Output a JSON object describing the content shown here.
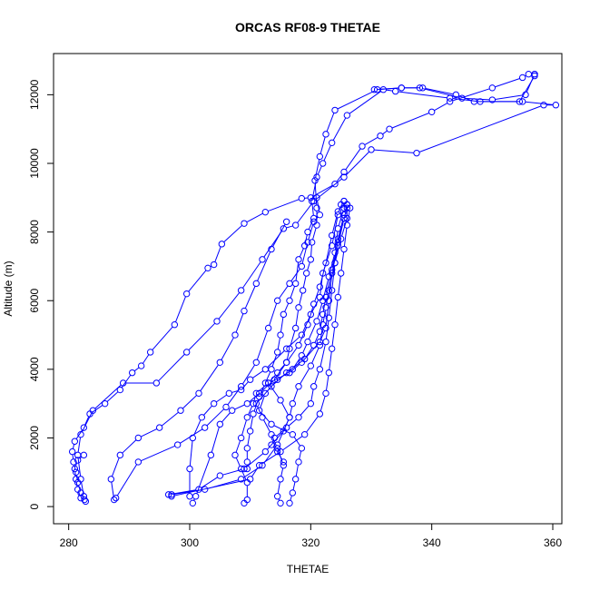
{
  "chart_data": {
    "type": "line",
    "title": "ORCAS RF08-9 THETAE",
    "xlabel": "THETAE",
    "ylabel": "Altitude (m)",
    "xlim": [
      277.5,
      361.5
    ],
    "ylim": [
      -500,
      13200
    ],
    "xticks": [
      280,
      300,
      320,
      340,
      360
    ],
    "yticks": [
      0,
      2000,
      4000,
      6000,
      8000,
      10000,
      12000
    ],
    "color": "#0000ff",
    "marker": "open-circle",
    "series": [
      {
        "values": [
          [
            282.6,
            200
          ],
          [
            282,
            400
          ],
          [
            281.5,
            700
          ],
          [
            281.2,
            1000
          ],
          [
            280.8,
            1300
          ],
          [
            280.6,
            1600
          ],
          [
            281,
            1900
          ],
          [
            282.5,
            2300
          ],
          [
            283.5,
            2700
          ],
          [
            286,
            3000
          ],
          [
            288.5,
            3400
          ],
          [
            290.5,
            3900
          ],
          [
            292,
            4100
          ],
          [
            293.5,
            4500
          ],
          [
            297.5,
            5300
          ],
          [
            299.5,
            6200
          ],
          [
            303,
            6950
          ],
          [
            304,
            7050
          ],
          [
            305.3,
            7650
          ],
          [
            309,
            8250
          ],
          [
            312.5,
            8580
          ],
          [
            318.5,
            8980
          ],
          [
            320,
            9000
          ],
          [
            324,
            9400
          ],
          [
            325.5,
            9750
          ],
          [
            328.5,
            10500
          ],
          [
            331.5,
            10800
          ],
          [
            333,
            11000
          ],
          [
            340,
            11500
          ],
          [
            343,
            11800
          ],
          [
            350,
            12200
          ],
          [
            355,
            12500
          ],
          [
            356,
            12600
          ],
          [
            357,
            12600
          ]
        ]
      },
      {
        "values": [
          [
            357,
            12600
          ],
          [
            355.5,
            12000
          ],
          [
            350,
            11850
          ],
          [
            345,
            11900
          ],
          [
            338,
            12200
          ],
          [
            335,
            12200
          ],
          [
            331,
            12150
          ],
          [
            324,
            11550
          ],
          [
            322.5,
            10850
          ],
          [
            321.5,
            10200
          ],
          [
            320.7,
            9500
          ],
          [
            321,
            8700
          ],
          [
            321,
            8200
          ],
          [
            320.2,
            7700
          ],
          [
            320,
            7200
          ],
          [
            319.3,
            6800
          ],
          [
            318.7,
            6300
          ],
          [
            318,
            5800
          ],
          [
            317.5,
            5200
          ],
          [
            316.5,
            4600
          ],
          [
            316,
            4200
          ],
          [
            314.5,
            3900
          ],
          [
            313,
            3600
          ],
          [
            311,
            3300
          ],
          [
            310.5,
            3000
          ],
          [
            309.5,
            2600
          ],
          [
            308.5,
            2000
          ],
          [
            307.5,
            1500
          ],
          [
            308.5,
            1100
          ],
          [
            309.5,
            700
          ],
          [
            309.5,
            200
          ],
          [
            309,
            100
          ]
        ]
      },
      {
        "values": [
          [
            357,
            12550
          ],
          [
            354.5,
            11800
          ],
          [
            348,
            11800
          ],
          [
            343,
            11900
          ],
          [
            334,
            12100
          ],
          [
            332,
            12150
          ],
          [
            326,
            11400
          ],
          [
            323.5,
            10600
          ],
          [
            322,
            10000
          ],
          [
            321,
            9600
          ],
          [
            320.2,
            8900
          ],
          [
            320.5,
            8400
          ],
          [
            319.5,
            8000
          ],
          [
            319,
            7600
          ],
          [
            318,
            7200
          ],
          [
            317.5,
            6500
          ],
          [
            316.5,
            6000
          ],
          [
            315.5,
            5600
          ],
          [
            315,
            5000
          ],
          [
            314.5,
            4500
          ],
          [
            313.5,
            4000
          ],
          [
            312.5,
            3600
          ],
          [
            311.5,
            3200
          ],
          [
            310.5,
            2700
          ],
          [
            310,
            2200
          ],
          [
            309.5,
            1700
          ],
          [
            309.5,
            1300
          ],
          [
            309.5,
            1100
          ]
        ]
      },
      {
        "values": [
          [
            282.5,
            300
          ],
          [
            282,
            800
          ],
          [
            281.5,
            1500
          ],
          [
            282,
            2100
          ],
          [
            284,
            2800
          ],
          [
            289,
            3600
          ],
          [
            294.5,
            3600
          ],
          [
            299.5,
            4500
          ],
          [
            304.5,
            5400
          ],
          [
            308.5,
            6300
          ],
          [
            312,
            7200
          ],
          [
            315.5,
            8100
          ],
          [
            317.5,
            8200
          ],
          [
            320.5,
            8900
          ],
          [
            325.5,
            9600
          ],
          [
            330,
            10400
          ],
          [
            337.5,
            10300
          ],
          [
            358.5,
            11700
          ],
          [
            360.5,
            11700
          ],
          [
            355,
            11800
          ],
          [
            347,
            11800
          ],
          [
            344,
            12000
          ],
          [
            338.5,
            12200
          ],
          [
            335,
            12200
          ],
          [
            330.5,
            12150
          ]
        ]
      },
      {
        "values": [
          [
            282.8,
            150
          ],
          [
            282,
            250
          ],
          [
            281.5,
            500
          ],
          [
            281.2,
            800
          ],
          [
            281,
            1100
          ],
          [
            281.5,
            1350
          ],
          [
            282.5,
            1500
          ]
        ]
      },
      {
        "values": [
          [
            287.5,
            200
          ],
          [
            287,
            800
          ],
          [
            288.5,
            1500
          ],
          [
            291.5,
            2000
          ],
          [
            295,
            2300
          ],
          [
            298.5,
            2800
          ],
          [
            301.5,
            3300
          ],
          [
            305,
            4200
          ],
          [
            307.5,
            5000
          ],
          [
            309,
            5700
          ],
          [
            311,
            6500
          ],
          [
            313.5,
            7500
          ],
          [
            316,
            8300
          ]
        ]
      },
      {
        "values": [
          [
            287.8,
            250
          ],
          [
            291.5,
            1300
          ],
          [
            298,
            1800
          ],
          [
            302.5,
            2300
          ],
          [
            306,
            2900
          ],
          [
            308.5,
            3500
          ],
          [
            311,
            4200
          ],
          [
            313,
            5200
          ],
          [
            314.5,
            6000
          ],
          [
            316.5,
            6500
          ],
          [
            318.5,
            7000
          ],
          [
            319.5,
            7700
          ],
          [
            320.5,
            8300
          ],
          [
            321.5,
            8500
          ],
          [
            321,
            9000
          ]
        ]
      },
      {
        "values": [
          [
            296.5,
            350
          ],
          [
            301.5,
            500
          ],
          [
            305,
            900
          ],
          [
            309,
            1100
          ],
          [
            312.5,
            1600
          ],
          [
            315.5,
            2200
          ],
          [
            316.5,
            2600
          ],
          [
            315,
            3100
          ],
          [
            313,
            3600
          ],
          [
            316.5,
            3900
          ],
          [
            318.5,
            4200
          ],
          [
            321.5,
            4800
          ],
          [
            322.5,
            5200
          ],
          [
            323,
            6000
          ],
          [
            323.5,
            6800
          ],
          [
            324.5,
            7600
          ],
          [
            325.5,
            8400
          ]
        ]
      },
      {
        "values": [
          [
            297,
            350
          ],
          [
            302.5,
            500
          ],
          [
            308.5,
            800
          ],
          [
            312,
            1200
          ],
          [
            314.5,
            1800
          ],
          [
            316.5,
            2600
          ],
          [
            317,
            3000
          ],
          [
            318,
            3500
          ],
          [
            320,
            4100
          ],
          [
            321.5,
            4700
          ],
          [
            322,
            5300
          ],
          [
            322.5,
            5800
          ],
          [
            323,
            6300
          ],
          [
            324,
            7100
          ],
          [
            325,
            7800
          ],
          [
            326,
            8400
          ],
          [
            326,
            8800
          ]
        ]
      },
      {
        "values": [
          [
            300,
            300
          ],
          [
            300,
            1100
          ],
          [
            300.5,
            2000
          ],
          [
            302,
            2600
          ],
          [
            304,
            3000
          ],
          [
            306.5,
            3300
          ],
          [
            308.5,
            3400
          ],
          [
            310,
            3700
          ],
          [
            312.5,
            4000
          ],
          [
            316,
            4600
          ],
          [
            318.5,
            5000
          ],
          [
            320,
            5600
          ],
          [
            321.5,
            6100
          ],
          [
            322,
            6800
          ],
          [
            323.5,
            7600
          ],
          [
            324.5,
            8500
          ],
          [
            325,
            8800
          ]
        ]
      },
      {
        "values": [
          [
            300.5,
            100
          ],
          [
            301,
            300
          ],
          [
            303.5,
            1500
          ],
          [
            305,
            2400
          ],
          [
            307,
            2800
          ],
          [
            309.5,
            3000
          ],
          [
            311.5,
            3300
          ],
          [
            314,
            3700
          ],
          [
            316,
            4200
          ],
          [
            318,
            4700
          ],
          [
            319.5,
            5300
          ],
          [
            320.5,
            5900
          ],
          [
            321.5,
            6400
          ],
          [
            322.5,
            7100
          ],
          [
            323.5,
            7900
          ],
          [
            324.5,
            8600
          ],
          [
            325.5,
            8900
          ]
        ]
      },
      {
        "values": [
          [
            316.5,
            100
          ],
          [
            317,
            400
          ],
          [
            317.5,
            800
          ],
          [
            318,
            1300
          ],
          [
            318.5,
            1700
          ],
          [
            317,
            2100
          ],
          [
            313.5,
            2400
          ],
          [
            311.5,
            2800
          ],
          [
            312.5,
            3300
          ],
          [
            314.5,
            3700
          ],
          [
            317,
            4000
          ],
          [
            318.5,
            4400
          ],
          [
            319.5,
            4800
          ],
          [
            321,
            5400
          ],
          [
            322,
            6000
          ],
          [
            323,
            6700
          ],
          [
            324,
            7400
          ],
          [
            324.5,
            8100
          ],
          [
            325.5,
            8700
          ],
          [
            325.5,
            8900
          ]
        ]
      },
      {
        "values": [
          [
            315,
            100
          ],
          [
            314.5,
            300
          ],
          [
            315,
            800
          ],
          [
            315.5,
            1200
          ],
          [
            314.5,
            1700
          ],
          [
            313.5,
            2100
          ],
          [
            312,
            2600
          ],
          [
            311,
            3000
          ],
          [
            313.5,
            3500
          ],
          [
            316,
            3900
          ],
          [
            319,
            4300
          ],
          [
            320.5,
            4700
          ],
          [
            321.5,
            5100
          ],
          [
            322,
            5600
          ],
          [
            322.5,
            6100
          ],
          [
            323.5,
            6900
          ],
          [
            324.5,
            7700
          ],
          [
            325.5,
            8400
          ],
          [
            326,
            8700
          ]
        ]
      },
      {
        "values": [
          [
            315.5,
            1300
          ],
          [
            314.5,
            1600
          ],
          [
            313.5,
            1800
          ],
          [
            314,
            2000
          ],
          [
            316,
            2300
          ],
          [
            318,
            2600
          ],
          [
            320,
            3000
          ],
          [
            320.5,
            3500
          ],
          [
            321.5,
            4000
          ],
          [
            322.5,
            4800
          ],
          [
            323,
            5500
          ],
          [
            323.5,
            6300
          ],
          [
            324,
            7100
          ],
          [
            324.5,
            7800
          ],
          [
            325.5,
            8500
          ],
          [
            326,
            8800
          ]
        ]
      },
      {
        "values": [
          [
            297,
            300
          ],
          [
            310,
            800
          ],
          [
            311.5,
            1200
          ],
          [
            315,
            1600
          ],
          [
            319,
            2100
          ],
          [
            321.5,
            2700
          ],
          [
            322.5,
            3300
          ],
          [
            323,
            3900
          ],
          [
            323.5,
            4600
          ],
          [
            324,
            5300
          ],
          [
            324.5,
            6100
          ],
          [
            325,
            6800
          ],
          [
            325.5,
            7500
          ],
          [
            326,
            8200
          ],
          [
            326.5,
            8700
          ]
        ]
      }
    ]
  }
}
